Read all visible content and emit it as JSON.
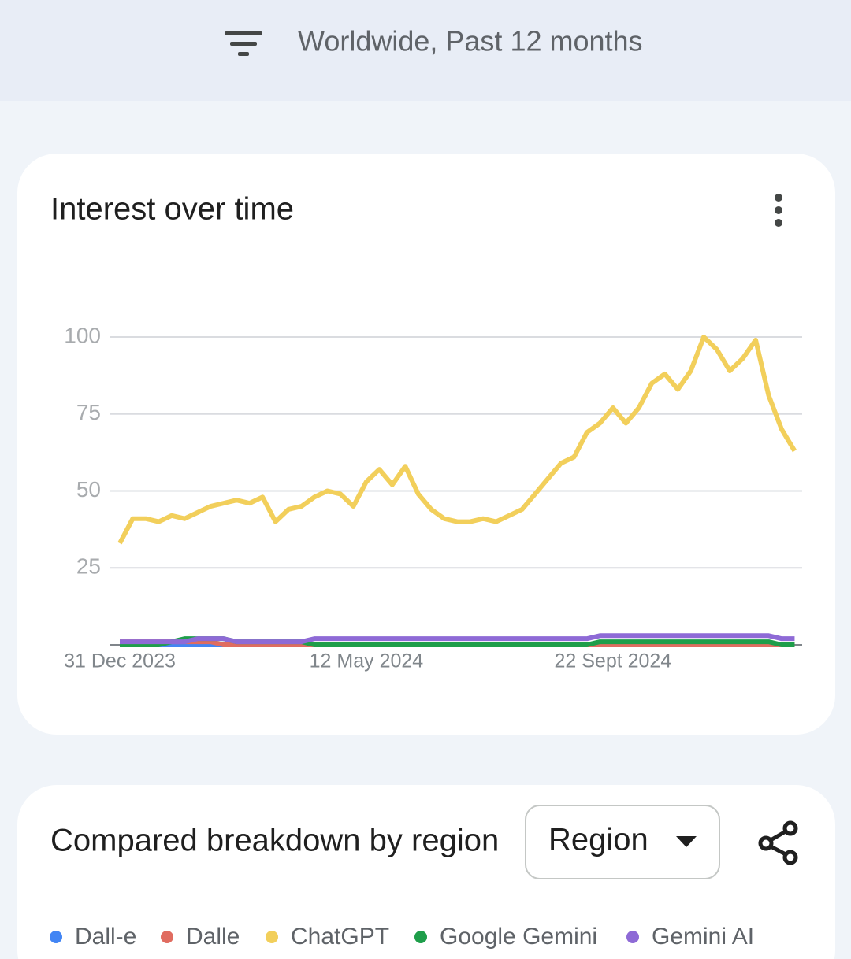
{
  "header": {
    "filter_text": "Worldwide, Past 12 months"
  },
  "interest_card": {
    "title": "Interest over time"
  },
  "chart_data": {
    "type": "line",
    "categories": [
      "31 Dec 2023",
      null,
      null,
      null,
      null,
      null,
      null,
      null,
      null,
      null,
      null,
      null,
      null,
      null,
      null,
      null,
      null,
      null,
      null,
      "12 May 2024",
      null,
      null,
      null,
      null,
      null,
      null,
      null,
      null,
      null,
      null,
      null,
      null,
      null,
      null,
      null,
      null,
      null,
      null,
      "22 Sept 2024",
      null,
      null,
      null,
      null,
      null,
      null,
      null,
      null,
      null,
      null,
      null,
      null,
      null,
      null
    ],
    "series": [
      {
        "name": "Dall-e",
        "color": "#4285f4",
        "values": [
          0,
          0,
          0,
          0,
          0,
          0,
          0,
          0,
          0,
          0,
          0,
          0,
          0,
          0,
          0,
          0,
          0,
          0,
          0,
          0,
          0,
          0,
          0,
          0,
          0,
          0,
          0,
          0,
          0,
          0,
          0,
          0,
          0,
          0,
          0,
          0,
          0,
          0,
          0,
          0,
          0,
          0,
          0,
          0,
          0,
          0,
          0,
          0,
          0,
          0,
          0,
          0,
          0
        ]
      },
      {
        "name": "Dalle",
        "color": "#e06c60",
        "values": [
          1,
          1,
          1,
          1,
          1,
          1,
          1,
          1,
          0,
          0,
          0,
          0,
          0,
          0,
          0,
          0,
          0,
          0,
          0,
          0,
          0,
          0,
          0,
          0,
          0,
          0,
          0,
          0,
          0,
          0,
          0,
          0,
          0,
          0,
          0,
          0,
          0,
          0,
          0,
          0,
          0,
          0,
          0,
          0,
          0,
          0,
          0,
          0,
          0,
          0,
          0,
          0,
          0
        ]
      },
      {
        "name": "ChatGPT",
        "color": "#f2cf5b",
        "values": [
          33,
          41,
          41,
          40,
          42,
          41,
          43,
          45,
          46,
          47,
          46,
          48,
          40,
          44,
          45,
          48,
          50,
          49,
          45,
          53,
          57,
          52,
          58,
          49,
          44,
          41,
          40,
          40,
          41,
          40,
          42,
          44,
          49,
          54,
          59,
          61,
          69,
          72,
          77,
          72,
          77,
          85,
          88,
          83,
          89,
          100,
          96,
          89,
          93,
          99,
          81,
          70,
          63
        ]
      },
      {
        "name": "Google Gemini",
        "color": "#1e9e4a",
        "values": [
          0,
          0,
          0,
          0,
          1,
          2,
          2,
          2,
          2,
          1,
          1,
          1,
          1,
          1,
          1,
          0,
          0,
          0,
          0,
          0,
          0,
          0,
          0,
          0,
          0,
          0,
          0,
          0,
          0,
          0,
          0,
          0,
          0,
          0,
          0,
          0,
          0,
          1,
          1,
          1,
          1,
          1,
          1,
          1,
          1,
          1,
          1,
          1,
          1,
          1,
          1,
          0,
          0
        ]
      },
      {
        "name": "Gemini AI",
        "color": "#8e6ad6",
        "values": [
          1,
          1,
          1,
          1,
          1,
          1,
          2,
          2,
          2,
          1,
          1,
          1,
          1,
          1,
          1,
          2,
          2,
          2,
          2,
          2,
          2,
          2,
          2,
          2,
          2,
          2,
          2,
          2,
          2,
          2,
          2,
          2,
          2,
          2,
          2,
          2,
          2,
          3,
          3,
          3,
          3,
          3,
          3,
          3,
          3,
          3,
          3,
          3,
          3,
          3,
          3,
          2,
          2
        ]
      }
    ],
    "ylim": [
      0,
      100
    ],
    "yticks": [
      25,
      50,
      75,
      100
    ],
    "grid": true
  },
  "region_card": {
    "title": "Compared breakdown by region",
    "dropdown": "Region"
  }
}
